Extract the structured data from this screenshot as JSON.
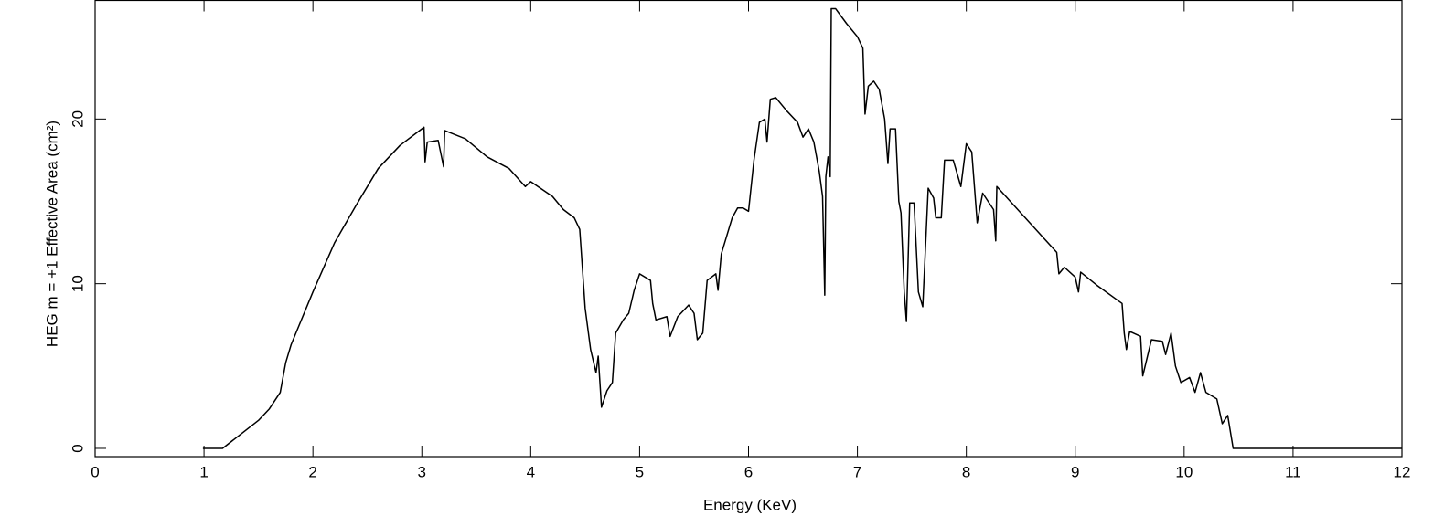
{
  "chart_data": {
    "type": "line",
    "xlabel": "Energy (KeV)",
    "ylabel": "HEG m = +1 Effective Area (cm²)",
    "xlim": [
      0,
      12
    ],
    "ylim": [
      -0.5,
      27.2
    ],
    "xticks": [
      0,
      1,
      2,
      3,
      4,
      5,
      6,
      7,
      8,
      9,
      10,
      11,
      12
    ],
    "yticks": [
      0,
      10,
      20
    ],
    "grid": false,
    "series": [
      {
        "name": "HEG m = +1",
        "color": "#000000",
        "x": [
          0.99,
          1.17,
          1.5,
          1.6,
          1.7,
          1.75,
          1.8,
          2.0,
          2.2,
          2.4,
          2.6,
          2.8,
          3.0,
          3.02,
          3.03,
          3.05,
          3.15,
          3.2,
          3.21,
          3.4,
          3.6,
          3.8,
          3.95,
          4.0,
          4.2,
          4.3,
          4.4,
          4.45,
          4.5,
          4.55,
          4.6,
          4.62,
          4.65,
          4.7,
          4.75,
          4.78,
          4.85,
          4.9,
          4.95,
          5.0,
          5.1,
          5.12,
          5.15,
          5.25,
          5.28,
          5.35,
          5.45,
          5.5,
          5.53,
          5.58,
          5.62,
          5.7,
          5.72,
          5.75,
          5.85,
          5.9,
          5.95,
          6.0,
          6.05,
          6.1,
          6.15,
          6.17,
          6.2,
          6.25,
          6.35,
          6.45,
          6.5,
          6.55,
          6.6,
          6.65,
          6.68,
          6.7,
          6.71,
          6.73,
          6.75,
          6.76,
          6.8,
          6.9,
          7.0,
          7.05,
          7.07,
          7.1,
          7.15,
          7.2,
          7.25,
          7.28,
          7.3,
          7.35,
          7.38,
          7.4,
          7.43,
          7.45,
          7.48,
          7.52,
          7.56,
          7.6,
          7.65,
          7.7,
          7.72,
          7.77,
          7.8,
          7.88,
          7.95,
          8.0,
          8.05,
          8.1,
          8.15,
          8.25,
          8.27,
          8.28,
          8.5,
          8.83,
          8.85,
          8.9,
          9.0,
          9.03,
          9.05,
          9.2,
          9.43,
          9.45,
          9.47,
          9.5,
          9.6,
          9.62,
          9.7,
          9.8,
          9.83,
          9.88,
          9.92,
          9.97,
          10.05,
          10.1,
          10.15,
          10.2,
          10.3,
          10.35,
          10.4,
          10.45,
          12
        ],
        "values": [
          0,
          0,
          1.7,
          2.4,
          3.4,
          5.2,
          6.3,
          9.5,
          12.5,
          14.8,
          17,
          18.4,
          19.4,
          19.5,
          17.4,
          18.6,
          18.7,
          17.1,
          19.3,
          18.8,
          17.7,
          17.0,
          15.9,
          16.2,
          15.3,
          14.5,
          14.0,
          13.3,
          8.5,
          6.0,
          4.6,
          5.6,
          2.5,
          3.5,
          4.0,
          7.0,
          7.8,
          8.2,
          9.6,
          10.6,
          10.2,
          8.8,
          7.8,
          8.0,
          6.8,
          8.0,
          8.7,
          8.2,
          6.6,
          7.0,
          10.2,
          10.6,
          9.6,
          11.8,
          14.0,
          14.6,
          14.6,
          14.4,
          17.5,
          19.8,
          20.0,
          18.6,
          21.2,
          21.3,
          20.5,
          19.8,
          18.9,
          19.4,
          18.6,
          16.8,
          15.3,
          9.3,
          16.5,
          17.7,
          16.5,
          26.7,
          26.7,
          25.8,
          25.0,
          24.3,
          20.3,
          22.0,
          22.3,
          21.8,
          20.0,
          17.3,
          19.4,
          19.4,
          15.0,
          14.3,
          9.5,
          7.7,
          14.9,
          14.9,
          9.5,
          8.6,
          15.8,
          15.2,
          14.0,
          14.0,
          17.5,
          17.5,
          15.9,
          18.5,
          18.0,
          13.7,
          15.5,
          14.5,
          12.6,
          15.9,
          14.3,
          11.9,
          10.6,
          11.0,
          10.4,
          9.5,
          10.7,
          9.9,
          8.8,
          7.0,
          6.0,
          7.1,
          6.8,
          4.4,
          6.6,
          6.5,
          5.7,
          7.0,
          5.0,
          4.0,
          4.3,
          3.4,
          4.6,
          3.4,
          3.0,
          1.5,
          2.0,
          0,
          0
        ]
      }
    ]
  }
}
